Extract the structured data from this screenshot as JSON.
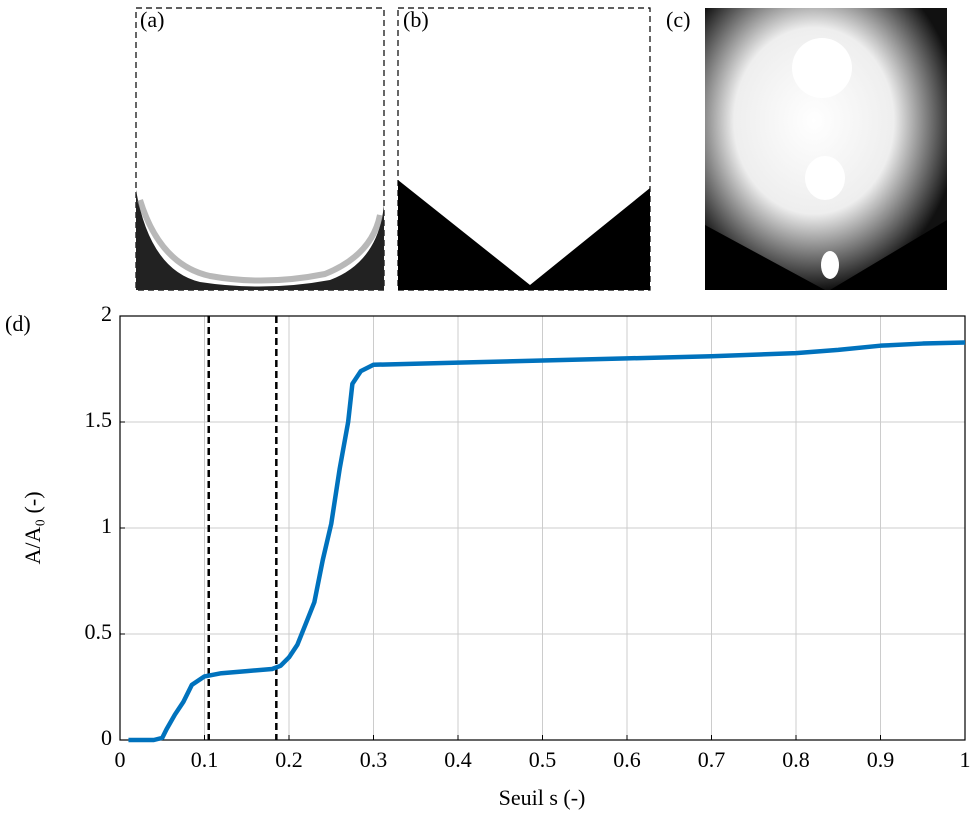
{
  "chart_data": {
    "type": "line",
    "panel_labels": [
      "(a)",
      "(b)",
      "(c)"
    ],
    "panel_d_label": "(d)",
    "xlabel": "Seuil s (-)",
    "ylabel": "A/A₀ (-)",
    "x": [
      0.01,
      0.04,
      0.05,
      0.055,
      0.065,
      0.075,
      0.085,
      0.1,
      0.12,
      0.15,
      0.18,
      0.19,
      0.2,
      0.21,
      0.22,
      0.23,
      0.24,
      0.25,
      0.26,
      0.27,
      0.275,
      0.285,
      0.3,
      0.4,
      0.5,
      0.6,
      0.7,
      0.8,
      0.85,
      0.9,
      0.95,
      1.0
    ],
    "values": [
      0,
      0,
      0.01,
      0.05,
      0.12,
      0.18,
      0.26,
      0.3,
      0.315,
      0.325,
      0.335,
      0.35,
      0.39,
      0.45,
      0.55,
      0.65,
      0.85,
      1.02,
      1.28,
      1.5,
      1.68,
      1.74,
      1.77,
      1.78,
      1.79,
      1.8,
      1.81,
      1.825,
      1.84,
      1.86,
      1.87,
      1.875
    ],
    "color": "#0072bd",
    "vlines": [
      0.105,
      0.185
    ],
    "xlim": [
      0,
      1
    ],
    "xticks": [
      0,
      0.1,
      0.2,
      0.3,
      0.4,
      0.5,
      0.6,
      0.7,
      0.8,
      0.9,
      1
    ],
    "ylim": [
      0,
      2
    ],
    "yticks": [
      0,
      0.5,
      1,
      1.5,
      2
    ],
    "grid": true
  }
}
